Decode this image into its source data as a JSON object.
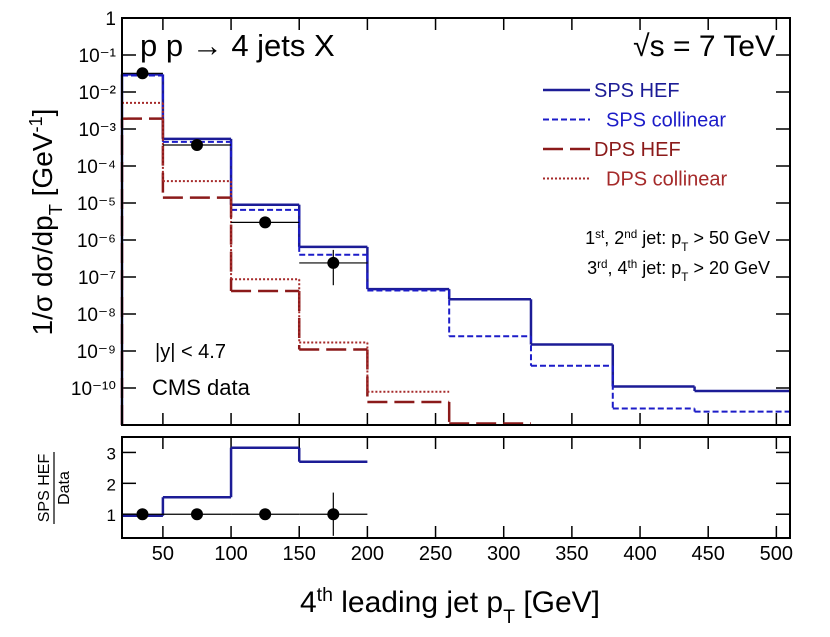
{
  "chart_data": [
    {
      "type": "histogram",
      "title": "p p → 4 jets X",
      "energy_label": "√s = 7 TeV",
      "y_label": [
        "1/σ  dσ/dp",
        "T",
        "   [GeV",
        "-1",
        "]"
      ],
      "cuts": [
        [
          "1",
          "st",
          ", 2",
          "nd",
          " jet: p",
          "T",
          " > 50 GeV"
        ],
        [
          "3",
          "rd",
          ", 4",
          "th",
          " jet: p",
          "T",
          " > 20 GeV"
        ]
      ],
      "rapidity_label": "|y| < 4.7",
      "ylog": true,
      "xlim": [
        20,
        510
      ],
      "ylim": [
        1e-11,
        1
      ],
      "yticks": [
        1,
        {
          "value": 0.1,
          "label": "10⁻¹"
        },
        {
          "value": 0.01,
          "label": "10⁻²"
        },
        {
          "value": 0.001,
          "label": "10⁻³"
        },
        {
          "value": 0.0001,
          "label": "10⁻⁴"
        },
        {
          "value": 1e-05,
          "label": "10⁻⁵"
        },
        {
          "value": 1e-06,
          "label": "10⁻⁶"
        },
        {
          "value": 1e-07,
          "label": "10⁻⁷"
        },
        {
          "value": 1e-08,
          "label": "10⁻⁸"
        },
        {
          "value": 1e-09,
          "label": "10⁻⁹"
        },
        {
          "value": 1e-10,
          "label": "10⁻¹⁰"
        }
      ],
      "bins": [
        20,
        50,
        100,
        150,
        200,
        260,
        320,
        380,
        440,
        510
      ],
      "series": [
        {
          "name": "SPS HEF",
          "color": "#1c1c96",
          "style": "solid",
          "values": [
            0.03,
            0.00054,
            9e-06,
            6.5e-07,
            4.7e-08,
            2.5e-08,
            1.5e-09,
            1.1e-10,
            8.3e-11
          ]
        },
        {
          "name": "SPS collinear",
          "color": "#1c1cc8",
          "style": "dashed",
          "values": [
            0.028,
            0.00045,
            6.5e-06,
            4e-07,
            4.3e-08,
            2.5e-09,
            4e-10,
            2.8e-11,
            2.3e-11
          ]
        },
        {
          "name": "DPS HEF",
          "color": "#8b1a1a",
          "style": "longdash",
          "values": [
            0.0019,
            1.4e-05,
            4.2e-08,
            1.1e-09,
            4.2e-11,
            1.1e-11,
            null,
            null,
            null
          ]
        },
        {
          "name": "DPS collinear",
          "color": "#a52a2a",
          "style": "dotted",
          "values": [
            0.0051,
            3.9e-05,
            8.7e-08,
            1.7e-09,
            7.9e-11,
            null,
            null,
            null,
            null
          ]
        }
      ],
      "points": {
        "name": "CMS data",
        "x": [
          35,
          75,
          125,
          175
        ],
        "xerr": [
          15,
          25,
          25,
          25
        ],
        "y": [
          0.032,
          0.00037,
          3e-06,
          2.4e-07
        ],
        "yerr_low": [
          0.003,
          5e-05,
          5e-07,
          1.8e-07
        ],
        "yerr_high": [
          0.003,
          5e-05,
          5e-07,
          3e-07
        ]
      },
      "legend": "upper right"
    },
    {
      "type": "histogram",
      "y_label": [
        "SPS HEF",
        "Data"
      ],
      "x_label": [
        "4",
        "th",
        " leading jet p",
        "T",
        "   [GeV]"
      ],
      "xlim": [
        20,
        510
      ],
      "ylim": [
        0.23,
        3.5
      ],
      "xticks": [
        50,
        100,
        150,
        200,
        250,
        300,
        350,
        400,
        450,
        500
      ],
      "yticks": [
        1,
        2,
        3
      ],
      "bins": [
        20,
        50,
        100,
        150,
        200
      ],
      "series": [
        {
          "name": "SPS HEF",
          "color": "#1c1c96",
          "style": "solid",
          "values": [
            0.95,
            1.55,
            3.15,
            2.7
          ]
        }
      ],
      "points": {
        "x": [
          35,
          75,
          125,
          175
        ],
        "xerr": [
          15,
          25,
          25,
          25
        ],
        "y": [
          1,
          1,
          1,
          1
        ],
        "yerr_low": [
          0.03,
          0.03,
          0.03,
          0.7
        ],
        "yerr_high": [
          0.03,
          0.03,
          0.03,
          0.7
        ]
      }
    }
  ]
}
